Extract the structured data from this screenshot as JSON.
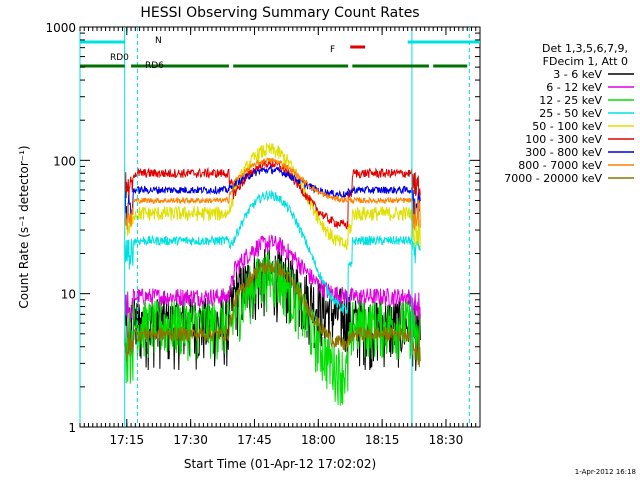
{
  "chart_data": {
    "type": "line",
    "title": "HESSI Observing Summary Count Rates",
    "xlabel": "Start Time (01-Apr-12 17:02:02)",
    "ylabel": "Count Rate (s⁻¹ detector⁻¹)",
    "yscale": "log",
    "ylim": [
      1,
      1000
    ],
    "xlim_minutes": [
      2,
      96
    ],
    "x_ticks": [
      {
        "m": 13,
        "label": "17:15"
      },
      {
        "m": 28,
        "label": "17:30"
      },
      {
        "m": 43,
        "label": "17:45"
      },
      {
        "m": 58,
        "label": "18:00"
      },
      {
        "m": 73,
        "label": "18:15"
      },
      {
        "m": 88,
        "label": "18:30"
      }
    ],
    "y_ticks": [
      {
        "v": 1,
        "label": "1"
      },
      {
        "v": 10,
        "label": "10"
      },
      {
        "v": 100,
        "label": "100"
      },
      {
        "v": 1000,
        "label": "1000"
      }
    ],
    "legend_header": [
      "Det 1,3,5,6,7,9,",
      "FDecim 1, Att 0"
    ],
    "series": [
      {
        "name": "3 - 6 keV",
        "color": "#000000",
        "base": 6,
        "peak": 14,
        "plateau": 7,
        "noise": 0.35
      },
      {
        "name": "6 - 12 keV",
        "color": "#e000e0",
        "base": 9.5,
        "peak": 24,
        "plateau": 9.5,
        "noise": 0.1
      },
      {
        "name": "12 - 25 keV",
        "color": "#00e000",
        "base": 6,
        "peak": 14,
        "plateau": 2.5,
        "noise": 0.3
      },
      {
        "name": "25 - 50 keV",
        "color": "#00e0e0",
        "base": 25,
        "peak": 55,
        "plateau": 7,
        "noise": 0.05
      },
      {
        "name": "50 - 100 keV",
        "color": "#e0e000",
        "base": 40,
        "peak": 120,
        "plateau": 22,
        "noise": 0.08
      },
      {
        "name": "100 - 300 keV",
        "color": "#e00000",
        "base": 80,
        "peak": 95,
        "plateau": 32,
        "noise": 0.05
      },
      {
        "name": "300 - 800 keV",
        "color": "#0000e0",
        "base": 60,
        "peak": 85,
        "plateau": 55,
        "noise": 0.04
      },
      {
        "name": "800 - 7000 keV",
        "color": "#ff8000",
        "base": 50,
        "peak": 100,
        "plateau": 50,
        "noise": 0.03
      },
      {
        "name": "7000 - 20000 keV",
        "color": "#8b7500",
        "base": 5,
        "peak": 16,
        "plateau": 4,
        "noise": 0.08
      }
    ],
    "flags": [
      {
        "label": "N",
        "color": "#00e0e0",
        "segments": [
          [
            2,
            12.5
          ],
          [
            79,
            96
          ]
        ]
      },
      {
        "label": "RD0",
        "color": "#007000",
        "segments": []
      },
      {
        "label": "RD6",
        "color": "#007000",
        "segments": [
          [
            2,
            12.5
          ],
          [
            14,
            37
          ],
          [
            38,
            65
          ],
          [
            66,
            84
          ],
          [
            85,
            93
          ]
        ]
      },
      {
        "label": "F",
        "color": "#e00000",
        "segments": [
          [
            65.5,
            69
          ]
        ]
      }
    ],
    "vlines": [
      {
        "m": 2,
        "color": "#00e0e0",
        "style": "solid"
      },
      {
        "m": 12.5,
        "color": "#00e0e0",
        "style": "solid"
      },
      {
        "m": 80,
        "color": "#00e0e0",
        "style": "solid"
      },
      {
        "m": 15.5,
        "color": "#00e0e0",
        "style": "dashed"
      },
      {
        "m": 93.5,
        "color": "#00e0e0",
        "style": "dashed"
      }
    ]
  },
  "footer": {
    "timestamp": "1-Apr-2012 16:18"
  }
}
